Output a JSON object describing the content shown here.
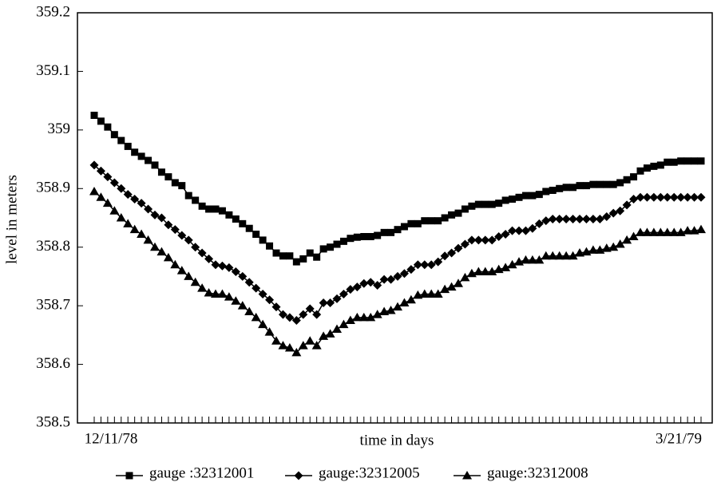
{
  "chart_data": {
    "type": "line",
    "x_label": "time in days",
    "y_label": "level in meters",
    "categories": [
      "12/11/78",
      null,
      null,
      null,
      null,
      null,
      null,
      null,
      null,
      null,
      null,
      null,
      null,
      null,
      null,
      null,
      null,
      null,
      null,
      null,
      null,
      null,
      null,
      null,
      null,
      null,
      null,
      null,
      null,
      null,
      null,
      null,
      null,
      null,
      null,
      null,
      null,
      null,
      null,
      null,
      null,
      null,
      null,
      null,
      null,
      null,
      null,
      null,
      null,
      null,
      null,
      null,
      null,
      null,
      null,
      null,
      null,
      null,
      null,
      null,
      null,
      null,
      null,
      null,
      null,
      null,
      null,
      null,
      null,
      null,
      null,
      null,
      null,
      null,
      null,
      null,
      null,
      null,
      null,
      null,
      null,
      null,
      null,
      null,
      null,
      null,
      null,
      null,
      null,
      null,
      "3/21/79"
    ],
    "series": [
      {
        "name": "gauge :32312001",
        "color": "#000000",
        "marker": "square",
        "values": [
          359.025,
          359.015,
          359.005,
          358.992,
          358.982,
          358.972,
          358.962,
          358.955,
          358.948,
          358.94,
          358.928,
          358.92,
          358.91,
          358.905,
          358.888,
          358.88,
          358.87,
          358.865,
          358.865,
          358.862,
          358.855,
          358.848,
          358.84,
          358.832,
          358.822,
          358.812,
          358.802,
          358.79,
          358.785,
          358.785,
          358.775,
          358.78,
          358.79,
          358.783,
          358.797,
          358.8,
          358.805,
          358.81,
          358.815,
          358.817,
          358.818,
          358.818,
          358.82,
          358.825,
          358.825,
          358.83,
          358.835,
          358.84,
          358.84,
          358.845,
          358.845,
          358.845,
          358.85,
          358.855,
          358.858,
          358.865,
          358.87,
          358.873,
          358.873,
          358.873,
          358.875,
          358.88,
          358.882,
          358.885,
          358.888,
          358.888,
          358.89,
          358.895,
          358.897,
          358.9,
          358.902,
          358.902,
          358.905,
          358.905,
          358.907,
          358.907,
          358.907,
          358.907,
          358.91,
          358.915,
          358.92,
          358.93,
          358.935,
          358.938,
          358.94,
          358.945,
          358.945,
          358.947,
          358.947,
          358.947,
          358.947
        ]
      },
      {
        "name": "gauge:32312005",
        "color": "#000000",
        "marker": "diamond",
        "values": [
          358.94,
          358.93,
          358.92,
          358.91,
          358.9,
          358.89,
          358.882,
          358.875,
          358.865,
          358.855,
          358.85,
          358.838,
          358.83,
          358.82,
          358.812,
          358.8,
          358.79,
          358.78,
          358.77,
          358.768,
          358.765,
          358.758,
          358.75,
          358.74,
          358.73,
          358.72,
          358.71,
          358.698,
          358.685,
          358.68,
          358.675,
          358.685,
          358.695,
          358.685,
          358.705,
          358.705,
          358.712,
          358.72,
          358.728,
          358.732,
          358.738,
          358.74,
          358.735,
          358.745,
          358.745,
          358.75,
          358.755,
          358.762,
          358.77,
          358.77,
          358.77,
          358.775,
          358.785,
          358.79,
          358.798,
          358.805,
          358.812,
          358.812,
          358.812,
          358.812,
          358.818,
          358.822,
          358.828,
          358.828,
          358.828,
          358.832,
          358.84,
          358.845,
          358.848,
          358.848,
          358.848,
          358.848,
          358.848,
          358.848,
          358.848,
          358.848,
          358.852,
          358.858,
          358.862,
          358.872,
          358.882,
          358.885,
          358.885,
          358.885,
          358.885,
          358.885,
          358.885,
          358.885,
          358.885,
          358.885,
          358.885
        ]
      },
      {
        "name": "gauge:32312008",
        "color": "#000000",
        "marker": "triangle",
        "values": [
          358.895,
          358.885,
          358.875,
          358.862,
          358.85,
          358.84,
          358.83,
          358.822,
          358.812,
          358.8,
          358.792,
          358.782,
          358.77,
          358.76,
          358.75,
          358.74,
          358.73,
          358.722,
          358.72,
          358.72,
          358.715,
          358.708,
          358.7,
          358.69,
          358.68,
          358.668,
          358.655,
          358.64,
          358.632,
          358.628,
          358.62,
          358.632,
          358.64,
          358.632,
          358.648,
          358.652,
          358.66,
          358.668,
          358.675,
          358.68,
          358.68,
          358.68,
          358.685,
          358.69,
          358.692,
          358.698,
          358.705,
          358.71,
          358.718,
          358.72,
          358.72,
          358.72,
          358.728,
          358.732,
          358.738,
          358.748,
          358.755,
          358.758,
          358.758,
          358.758,
          358.762,
          358.765,
          358.77,
          358.775,
          358.778,
          358.778,
          358.778,
          358.785,
          358.785,
          358.785,
          358.785,
          358.785,
          358.79,
          358.792,
          358.795,
          358.795,
          358.798,
          358.8,
          358.805,
          358.812,
          358.818,
          358.825,
          358.825,
          358.825,
          358.825,
          358.825,
          358.825,
          358.825,
          358.828,
          358.828,
          358.83
        ]
      }
    ],
    "ylim": [
      358.5,
      359.2
    ],
    "yticks": [
      358.5,
      358.6,
      358.7,
      358.8,
      358.9,
      359,
      359.1,
      359.2
    ],
    "grid": false,
    "legend": "bottom"
  }
}
